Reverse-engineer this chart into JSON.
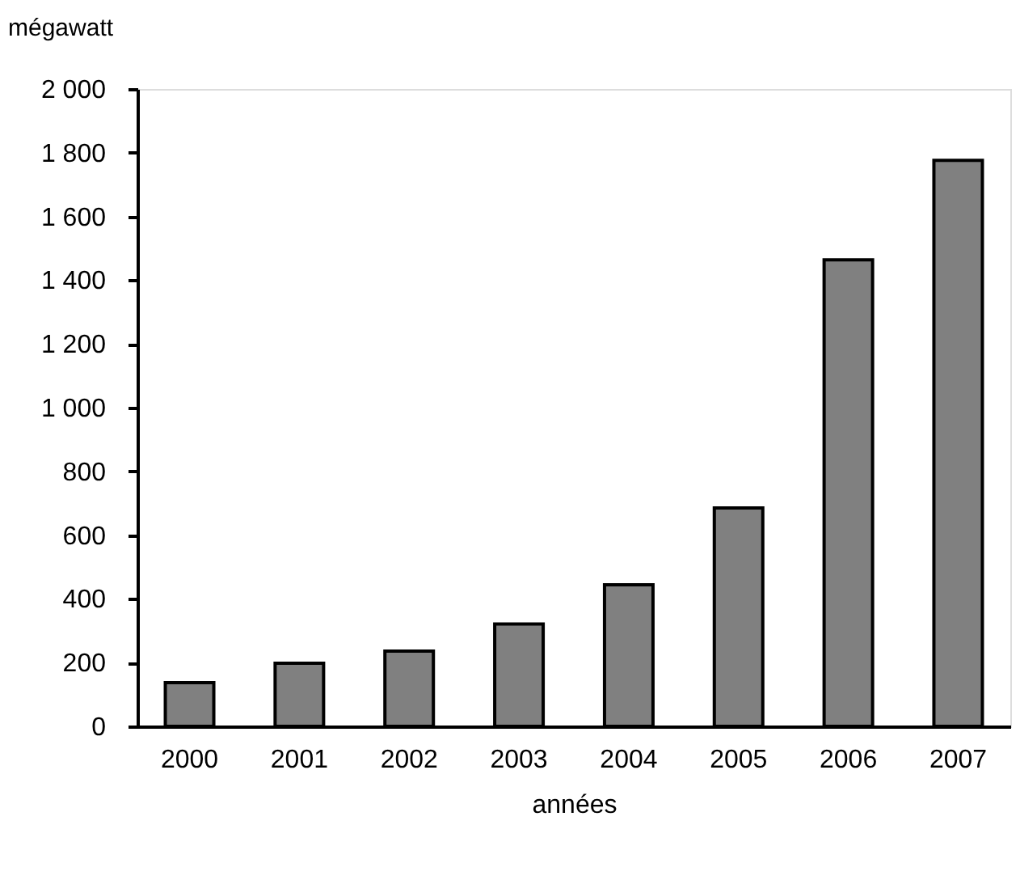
{
  "chart_data": {
    "type": "bar",
    "ylabel": "mégawatt",
    "xlabel": "années",
    "categories": [
      "2000",
      "2001",
      "2002",
      "2003",
      "2004",
      "2005",
      "2006",
      "2007"
    ],
    "values": [
      137,
      198,
      236,
      321,
      444,
      685,
      1464,
      1776
    ],
    "color": "#808080",
    "ylim": [
      0,
      2000
    ],
    "yticks": [
      0,
      200,
      400,
      600,
      800,
      {
        "value": 1000,
        "label": "1 000"
      },
      {
        "value": 1200,
        "label": "1 200"
      },
      {
        "value": 1400,
        "label": "1 400"
      },
      {
        "value": 1600,
        "label": "1 600"
      },
      {
        "value": 1800,
        "label": "1 800"
      },
      {
        "value": 2000,
        "label": "2 000"
      }
    ],
    "grid": false
  }
}
